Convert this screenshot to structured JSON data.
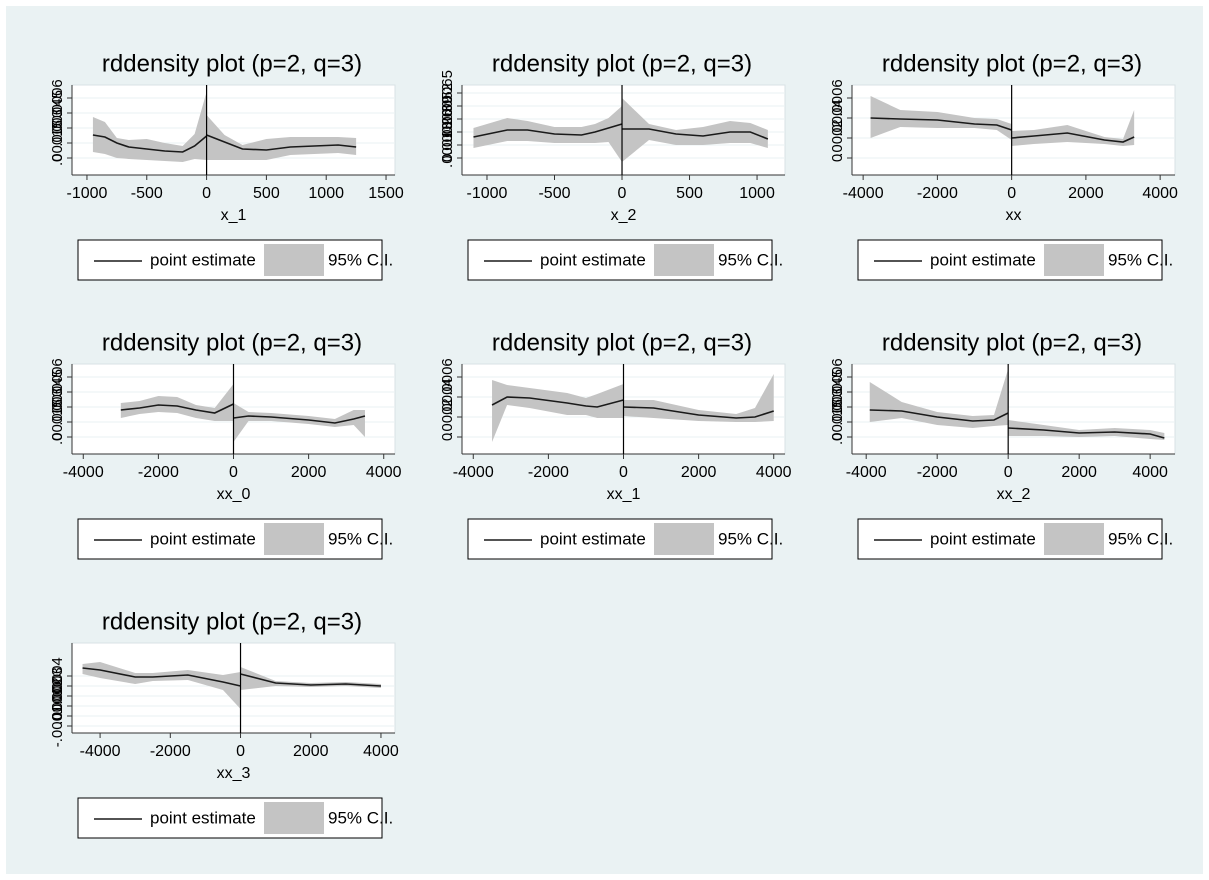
{
  "chart_data": [
    {
      "type": "rdplot",
      "title": "rddensity plot (p=2, q=3)",
      "xlabel": "x_1",
      "xlim": [
        -1125,
        1575
      ],
      "xticks": [
        -1000,
        -500,
        0,
        500,
        1000,
        1500
      ],
      "ylim": [
        -0.00017,
        0.00073
      ],
      "yticks": [
        0,
        {
          "value": 0.00015,
          "label": ".00015"
        },
        {
          "value": 0.0003,
          "label": ".0003"
        },
        {
          "value": 0.00045,
          "label": ".00045"
        },
        {
          "value": 0.0006,
          "label": ".0006"
        }
      ],
      "cutoff": 0,
      "series": [
        {
          "name": "point estimate",
          "color": "#1a1a1a"
        },
        {
          "name": "95% C.I.",
          "color": "#c4c4c4"
        }
      ],
      "segments": [
        {
          "x": [
            -950,
            -850,
            -750,
            -650,
            -500,
            -350,
            -200,
            -100,
            0
          ],
          "values": [
            0.00023,
            0.00021,
            0.00015,
            0.00011,
            9e-05,
            7e-05,
            6e-05,
            0.00012,
            0.00022
          ],
          "upper": [
            0.00041,
            0.00036,
            0.0002,
            0.00018,
            0.00019,
            0.00015,
            0.00012,
            0.00024,
            0.00066
          ],
          "lower": [
            6e-05,
            4e-05,
            0,
            -1e-05,
            -2e-05,
            -3e-05,
            -4e-05,
            -1e-05,
            -2e-05
          ]
        },
        {
          "x": [
            0,
            150,
            300,
            500,
            700,
            900,
            1100,
            1250
          ],
          "values": [
            0.00023,
            0.00016,
            9e-05,
            8e-05,
            0.00011,
            0.00012,
            0.00013,
            0.00011
          ],
          "upper": [
            0.00043,
            0.00023,
            0.00013,
            0.00019,
            0.00021,
            0.00021,
            0.00021,
            0.0002
          ],
          "lower": [
            -2e-05,
            -2e-05,
            -2e-05,
            -2e-05,
            3e-05,
            4e-05,
            5e-05,
            3e-05
          ]
        }
      ]
    },
    {
      "type": "rdplot",
      "title": "rddensity plot (p=2, q=3)",
      "xlabel": "x_2",
      "xlim": [
        -1185,
        1207
      ],
      "xticks": [
        -1000,
        -500,
        0,
        500,
        1000
      ],
      "ylim": [
        -0.00017,
        0.00073
      ],
      "yticks": [
        0,
        {
          "value": 0.00013,
          "label": ".00013"
        },
        {
          "value": 0.00026,
          "label": ".00026"
        },
        {
          "value": 0.00039,
          "label": ".00039"
        },
        {
          "value": 0.00052,
          "label": ".00052"
        },
        {
          "value": 0.00065,
          "label": ".00065"
        }
      ],
      "cutoff": 0,
      "series": [
        {
          "name": "point estimate",
          "color": "#1a1a1a"
        },
        {
          "name": "95% C.I.",
          "color": "#c4c4c4"
        }
      ],
      "segments": [
        {
          "x": [
            -1100,
            -850,
            -700,
            -500,
            -300,
            -200,
            -100,
            0
          ],
          "values": [
            0.00021,
            0.00028,
            0.00028,
            0.00024,
            0.00023,
            0.00026,
            0.0003,
            0.00034
          ],
          "upper": [
            0.0003,
            0.0004,
            0.00037,
            0.00031,
            0.00031,
            0.00034,
            0.0004,
            0.00052
          ],
          "lower": [
            0.0001,
            0.00017,
            0.00017,
            0.00015,
            0.00015,
            0.00015,
            0.00016,
            -4e-05
          ]
        },
        {
          "x": [
            0,
            200,
            400,
            600,
            800,
            950,
            1080
          ],
          "values": [
            0.00029,
            0.00029,
            0.00024,
            0.00022,
            0.00026,
            0.00026,
            0.00019
          ],
          "upper": [
            0.0006,
            0.00034,
            0.00028,
            0.00031,
            0.00037,
            0.00035,
            0.00028
          ],
          "lower": [
            -4e-05,
            0.00018,
            0.00013,
            0.00013,
            0.00015,
            0.00015,
            0.0001
          ]
        }
      ]
    },
    {
      "type": "rdplot",
      "title": "rddensity plot (p=2, q=3)",
      "xlabel": "xx",
      "xlim": [
        -4300,
        4400
      ],
      "xticks": [
        -4000,
        -2000,
        0,
        2000,
        4000
      ],
      "ylim": [
        -0.00017,
        0.00073
      ],
      "yticks": [
        0,
        {
          "value": 0.0002,
          "label": ".0002"
        },
        {
          "value": 0.0004,
          "label": ".0004"
        },
        {
          "value": 0.0006,
          "label": ".0006"
        }
      ],
      "cutoff": 0,
      "series": [
        {
          "name": "point estimate",
          "color": "#1a1a1a"
        },
        {
          "name": "95% C.I.",
          "color": "#c4c4c4"
        }
      ],
      "segments": [
        {
          "x": [
            -3800,
            -3000,
            -2000,
            -1000,
            -400,
            0
          ],
          "values": [
            0.0004,
            0.00039,
            0.00038,
            0.00034,
            0.00033,
            0.00028
          ],
          "upper": [
            0.00062,
            0.00048,
            0.00046,
            0.0004,
            0.00039,
            0.00034
          ],
          "lower": [
            0.0002,
            0.00031,
            0.0003,
            0.0003,
            0.00028,
            0.00018
          ]
        },
        {
          "x": [
            0,
            600,
            1500,
            2500,
            3000,
            3300
          ],
          "values": [
            0.0002,
            0.00022,
            0.00025,
            0.00018,
            0.00016,
            0.00021
          ],
          "upper": [
            0.00027,
            0.00028,
            0.00033,
            0.00021,
            0.00019,
            0.00048
          ],
          "lower": [
            0.00012,
            0.00014,
            0.00016,
            0.00014,
            0.00012,
            0.00013
          ]
        }
      ]
    },
    {
      "type": "rdplot",
      "title": "rddensity plot (p=2, q=3)",
      "xlabel": "xx_0",
      "xlim": [
        -4300,
        4300
      ],
      "xticks": [
        -4000,
        -2000,
        0,
        2000,
        4000
      ],
      "ylim": [
        -0.00017,
        0.00073
      ],
      "yticks": [
        0,
        {
          "value": 0.00015,
          "label": ".00015"
        },
        {
          "value": 0.0003,
          "label": ".0003"
        },
        {
          "value": 0.00045,
          "label": ".00045"
        },
        {
          "value": 0.0006,
          "label": ".0006"
        }
      ],
      "cutoff": 0,
      "series": [
        {
          "name": "point estimate",
          "color": "#1a1a1a"
        },
        {
          "name": "95% C.I.",
          "color": "#c4c4c4"
        }
      ],
      "segments": [
        {
          "x": [
            -3000,
            -2500,
            -2000,
            -1500,
            -1000,
            -500,
            0
          ],
          "values": [
            0.00027,
            0.00029,
            0.00032,
            0.00031,
            0.00027,
            0.00024,
            0.00033
          ],
          "upper": [
            0.00034,
            0.00036,
            0.00041,
            0.0004,
            0.00032,
            0.00029,
            0.00053
          ],
          "lower": [
            0.00019,
            0.00023,
            0.00025,
            0.00024,
            0.00019,
            0.00016,
            0.00016
          ]
        },
        {
          "x": [
            0,
            400,
            1000,
            2000,
            2700,
            3200,
            3500
          ],
          "values": [
            0.00019,
            0.00021,
            0.0002,
            0.00017,
            0.00014,
            0.00018,
            0.00021
          ],
          "upper": [
            0.00034,
            0.00025,
            0.00024,
            0.00021,
            0.00018,
            0.00027,
            0.00027
          ],
          "lower": [
            -5e-05,
            0.00016,
            0.00016,
            0.00013,
            0.0001,
            0.00012,
            0
          ]
        }
      ]
    },
    {
      "type": "rdplot",
      "title": "rddensity plot (p=2, q=3)",
      "xlabel": "xx_1",
      "xlim": [
        -4300,
        4300
      ],
      "xticks": [
        -4000,
        -2000,
        0,
        2000,
        4000
      ],
      "ylim": [
        -0.00017,
        0.00073
      ],
      "yticks": [
        0,
        {
          "value": 0.0002,
          "label": ".0002"
        },
        {
          "value": 0.0004,
          "label": ".0004"
        },
        {
          "value": 0.0006,
          "label": ".0006"
        }
      ],
      "cutoff": 0,
      "series": [
        {
          "name": "point estimate",
          "color": "#1a1a1a"
        },
        {
          "name": "95% C.I.",
          "color": "#c4c4c4"
        }
      ],
      "segments": [
        {
          "x": [
            -3500,
            -3100,
            -2500,
            -1500,
            -1000,
            -700,
            0
          ],
          "values": [
            0.00032,
            0.0004,
            0.00039,
            0.00034,
            0.00031,
            0.0003,
            0.00037
          ],
          "upper": [
            0.00057,
            0.00052,
            0.00049,
            0.00044,
            0.00039,
            0.00043,
            0.00053
          ],
          "lower": [
            -5e-05,
            0.00032,
            0.00029,
            0.00022,
            0.00022,
            0.00019,
            0.00019
          ]
        },
        {
          "x": [
            0,
            800,
            2000,
            3000,
            3500,
            4000
          ],
          "values": [
            0.0003,
            0.00029,
            0.00022,
            0.00019,
            0.0002,
            0.00026
          ],
          "upper": [
            0.00037,
            0.00037,
            0.00027,
            0.00023,
            0.00029,
            0.00063
          ],
          "lower": [
            0.00021,
            0.00019,
            0.00016,
            0.00015,
            0.00015,
            0.00016
          ]
        }
      ]
    },
    {
      "type": "rdplot",
      "title": "rddensity plot (p=2, q=3)",
      "xlabel": "xx_2",
      "xlim": [
        -4400,
        4700
      ],
      "xticks": [
        -4000,
        -2000,
        0,
        2000,
        4000
      ],
      "ylim": [
        -0.00017,
        0.00073
      ],
      "yticks": [
        0,
        {
          "value": 0.00015,
          "label": ".00015"
        },
        {
          "value": 0.0003,
          "label": ".0003"
        },
        {
          "value": 0.00045,
          "label": ".00045"
        },
        {
          "value": 0.0006,
          "label": ".0006"
        }
      ],
      "cutoff": 0,
      "series": [
        {
          "name": "point estimate",
          "color": "#1a1a1a"
        },
        {
          "name": "95% C.I.",
          "color": "#c4c4c4"
        }
      ],
      "segments": [
        {
          "x": [
            -3900,
            -3000,
            -2000,
            -1000,
            -400,
            0
          ],
          "values": [
            0.00027,
            0.00026,
            0.0002,
            0.00016,
            0.00017,
            0.00024
          ],
          "upper": [
            0.00055,
            0.00035,
            0.00025,
            0.00021,
            0.00022,
            0.00068
          ],
          "lower": [
            0.00015,
            0.00019,
            0.00012,
            9e-05,
            0.00011,
            0.00012
          ]
        },
        {
          "x": [
            0,
            1000,
            2000,
            3000,
            4000,
            4400
          ],
          "values": [
            9e-05,
            7e-05,
            4e-05,
            5e-05,
            3e-05,
            -1e-05
          ],
          "upper": [
            0.00017,
            0.00012,
            7e-05,
            9e-05,
            7e-05,
            4e-05
          ],
          "lower": [
            1e-05,
            1e-05,
            0,
            1e-05,
            -2e-05,
            -3e-05
          ]
        }
      ]
    },
    {
      "type": "rdplot",
      "title": "rddensity plot (p=2, q=3)",
      "xlabel": "xx_3",
      "xlim": [
        -4800,
        4400
      ],
      "xticks": [
        -4000,
        -2000,
        0,
        2000,
        4000
      ],
      "ylim": [
        -0.00017,
        0.00073
      ],
      "yticks": [
        {
          "value": -0.0001,
          "label": "-.0001"
        },
        0,
        {
          "value": 0.0001,
          "label": ".0001"
        },
        {
          "value": 0.0002,
          "label": ".0002"
        },
        {
          "value": 0.0003,
          "label": ".0003"
        },
        {
          "value": 0.0004,
          "label": ".0004"
        }
      ],
      "cutoff": 0,
      "series": [
        {
          "name": "point estimate",
          "color": "#1a1a1a"
        },
        {
          "name": "95% C.I.",
          "color": "#c4c4c4"
        }
      ],
      "segments": [
        {
          "x": [
            -4500,
            -4000,
            -3000,
            -2500,
            -1500,
            -500,
            0
          ],
          "values": [
            0.00048,
            0.00046,
            0.00039,
            0.00039,
            0.00041,
            0.00034,
            0.0003
          ],
          "upper": [
            0.00052,
            0.00054,
            0.00043,
            0.00043,
            0.00046,
            0.00041,
            0.00044
          ],
          "lower": [
            0.00042,
            0.00038,
            0.00032,
            0.00035,
            0.00036,
            0.00026,
            7e-05
          ]
        },
        {
          "x": [
            0,
            1000,
            2000,
            3000,
            4000
          ],
          "values": [
            0.00042,
            0.00033,
            0.00031,
            0.00032,
            0.0003
          ],
          "upper": [
            0.00049,
            0.00035,
            0.00033,
            0.00034,
            0.00032
          ],
          "lower": [
            0.00026,
            0.0003,
            0.00029,
            0.0003,
            0.00028
          ]
        }
      ]
    }
  ]
}
